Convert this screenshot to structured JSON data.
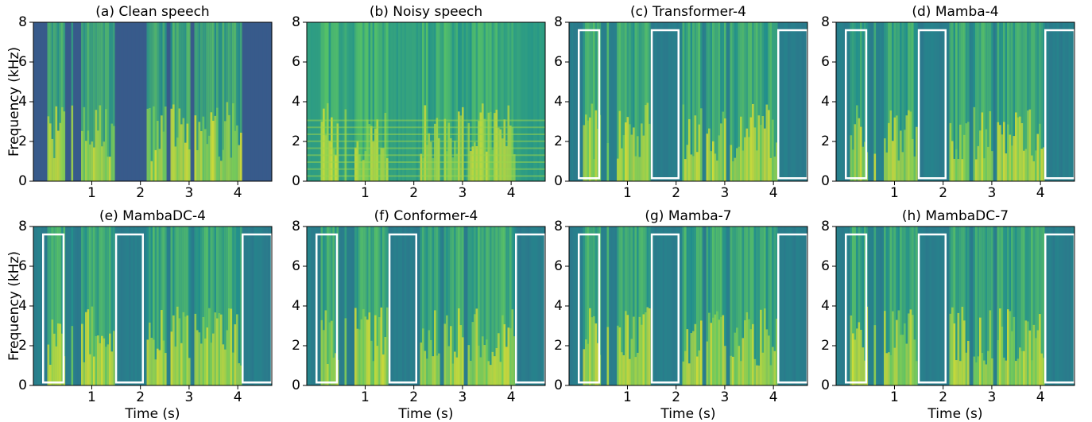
{
  "chart_data": [
    {
      "type": "spectrogram",
      "title": "(a) Clean speech",
      "ylabel": "Frequency (kHz)",
      "xlim": [
        -0.2,
        4.7
      ],
      "ylim": [
        0,
        8
      ],
      "xticks": [
        1,
        2,
        3,
        4
      ],
      "yticks": [
        0,
        2,
        4,
        6,
        8
      ],
      "colormap": "viridis",
      "highlights": []
    },
    {
      "type": "spectrogram",
      "title": "(b) Noisy speech",
      "xlim": [
        -0.2,
        4.7
      ],
      "ylim": [
        0,
        8
      ],
      "xticks": [
        1,
        2,
        3,
        4
      ],
      "yticks": [
        0,
        2,
        4,
        6,
        8
      ],
      "colormap": "viridis",
      "highlights": []
    },
    {
      "type": "spectrogram",
      "title": "(c) Transformer-4",
      "xlim": [
        -0.2,
        4.7
      ],
      "ylim": [
        0,
        8
      ],
      "xticks": [
        1,
        2,
        3,
        4
      ],
      "yticks": [
        0,
        2,
        4,
        6,
        8
      ],
      "colormap": "viridis",
      "highlights": [
        {
          "x": [
            0.0,
            0.42
          ],
          "y": [
            0.15,
            7.6
          ]
        },
        {
          "x": [
            1.5,
            2.05
          ],
          "y": [
            0.15,
            7.6
          ]
        },
        {
          "x": [
            4.1,
            4.7
          ],
          "y": [
            0.15,
            7.6
          ]
        }
      ]
    },
    {
      "type": "spectrogram",
      "title": "(d) Mamba-4",
      "xlim": [
        -0.2,
        4.7
      ],
      "ylim": [
        0,
        8
      ],
      "xticks": [
        1,
        2,
        3,
        4
      ],
      "yticks": [
        0,
        2,
        4,
        6,
        8
      ],
      "colormap": "viridis",
      "highlights": [
        {
          "x": [
            0.0,
            0.42
          ],
          "y": [
            0.15,
            7.6
          ]
        },
        {
          "x": [
            1.5,
            2.05
          ],
          "y": [
            0.15,
            7.6
          ]
        },
        {
          "x": [
            4.1,
            4.7
          ],
          "y": [
            0.15,
            7.6
          ]
        }
      ]
    },
    {
      "type": "spectrogram",
      "title": "(e) MambaDC-4",
      "ylabel": "Frequency (kHz)",
      "xlabel": "Time (s)",
      "xlim": [
        -0.2,
        4.7
      ],
      "ylim": [
        0,
        8
      ],
      "xticks": [
        1,
        2,
        3,
        4
      ],
      "yticks": [
        0,
        2,
        4,
        6,
        8
      ],
      "colormap": "viridis",
      "highlights": [
        {
          "x": [
            0.0,
            0.42
          ],
          "y": [
            0.15,
            7.6
          ]
        },
        {
          "x": [
            1.5,
            2.05
          ],
          "y": [
            0.15,
            7.6
          ]
        },
        {
          "x": [
            4.1,
            4.7
          ],
          "y": [
            0.15,
            7.6
          ]
        }
      ]
    },
    {
      "type": "spectrogram",
      "title": "(f) Conformer-4",
      "xlabel": "Time (s)",
      "xlim": [
        -0.2,
        4.7
      ],
      "ylim": [
        0,
        8
      ],
      "xticks": [
        1,
        2,
        3,
        4
      ],
      "yticks": [
        0,
        2,
        4,
        6,
        8
      ],
      "colormap": "viridis",
      "highlights": [
        {
          "x": [
            0.0,
            0.42
          ],
          "y": [
            0.15,
            7.6
          ]
        },
        {
          "x": [
            1.5,
            2.05
          ],
          "y": [
            0.15,
            7.6
          ]
        },
        {
          "x": [
            4.1,
            4.7
          ],
          "y": [
            0.15,
            7.6
          ]
        }
      ]
    },
    {
      "type": "spectrogram",
      "title": "(g) Mamba-7",
      "xlabel": "Time (s)",
      "xlim": [
        -0.2,
        4.7
      ],
      "ylim": [
        0,
        8
      ],
      "xticks": [
        1,
        2,
        3,
        4
      ],
      "yticks": [
        0,
        2,
        4,
        6,
        8
      ],
      "colormap": "viridis",
      "highlights": [
        {
          "x": [
            0.0,
            0.42
          ],
          "y": [
            0.15,
            7.6
          ]
        },
        {
          "x": [
            1.5,
            2.05
          ],
          "y": [
            0.15,
            7.6
          ]
        },
        {
          "x": [
            4.1,
            4.7
          ],
          "y": [
            0.15,
            7.6
          ]
        }
      ]
    },
    {
      "type": "spectrogram",
      "title": "(h) MambaDC-7",
      "xlabel": "Time (s)",
      "xlim": [
        -0.2,
        4.7
      ],
      "ylim": [
        0,
        8
      ],
      "xticks": [
        1,
        2,
        3,
        4
      ],
      "yticks": [
        0,
        2,
        4,
        6,
        8
      ],
      "colormap": "viridis",
      "highlights": [
        {
          "x": [
            0.0,
            0.42
          ],
          "y": [
            0.15,
            7.6
          ]
        },
        {
          "x": [
            1.5,
            2.05
          ],
          "y": [
            0.15,
            7.6
          ]
        },
        {
          "x": [
            4.1,
            4.7
          ],
          "y": [
            0.15,
            7.6
          ]
        }
      ]
    }
  ]
}
